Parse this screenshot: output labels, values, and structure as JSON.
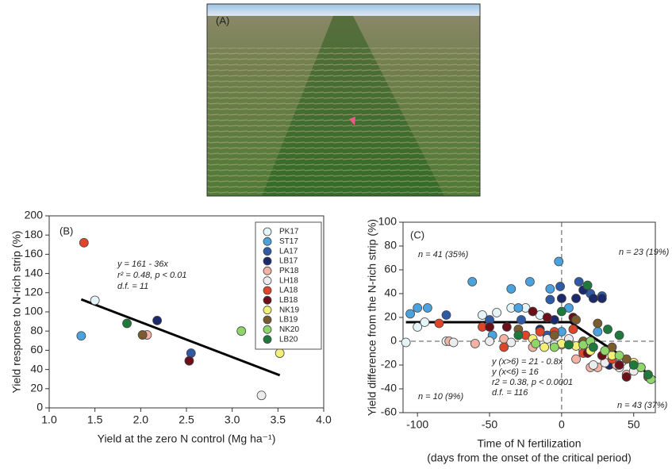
{
  "photo": {
    "label": "(A)"
  },
  "chart_data": [
    {
      "type": "scatter",
      "panel": "(B)",
      "x_label": "Yield at the zero N control (Mg ha⁻¹)",
      "y_label": "Yield response to N-rich strip (%)",
      "annotations": [
        "y = 161 - 36x",
        "r² = 0.48, p < 0.01",
        "d.f. = 11"
      ],
      "xlim": [
        1.0,
        4.0
      ],
      "xticks": [
        {
          "value": 1.0,
          "label": "1.0"
        },
        {
          "value": 1.5,
          "label": "1.5"
        },
        {
          "value": 2.0,
          "label": "2.0"
        },
        {
          "value": 2.5,
          "label": "2.5"
        },
        {
          "value": 3.0,
          "label": "3.0"
        },
        {
          "value": 3.5,
          "label": "3.5"
        },
        {
          "value": 4.0,
          "label": "4.0"
        }
      ],
      "ylim": [
        0,
        200
      ],
      "yticks": [
        0,
        20,
        40,
        60,
        80,
        100,
        120,
        140,
        160,
        180,
        200
      ],
      "legend": "top-right",
      "series": [
        {
          "name": "PK17",
          "color": "#e4f4f8",
          "x": [
            1.5
          ],
          "values": [
            112
          ]
        },
        {
          "name": "ST17",
          "color": "#4aa3df",
          "x": [
            1.35
          ],
          "values": [
            75
          ]
        },
        {
          "name": "LA17",
          "color": "#2f5ba6",
          "x": [
            2.55
          ],
          "values": [
            57
          ]
        },
        {
          "name": "LB17",
          "color": "#1b2a6b",
          "x": [
            2.18
          ],
          "values": [
            91
          ]
        },
        {
          "name": "PK18",
          "color": "#f2b2a4",
          "x": [
            2.07
          ],
          "values": [
            76
          ]
        },
        {
          "name": "LH18",
          "color": "#ececec",
          "x": [
            3.32
          ],
          "values": [
            13
          ]
        },
        {
          "name": "LA18",
          "color": "#e0452a",
          "x": [
            1.38
          ],
          "values": [
            172
          ]
        },
        {
          "name": "LB18",
          "color": "#6b0f1a",
          "x": [
            2.53
          ],
          "values": [
            49
          ]
        },
        {
          "name": "NK19",
          "color": "#f3f07a",
          "x": [
            3.52
          ],
          "values": [
            57
          ]
        },
        {
          "name": "LB19",
          "color": "#7a5c2e",
          "x": [
            2.02
          ],
          "values": [
            76
          ]
        },
        {
          "name": "NK20",
          "color": "#8fd66a",
          "x": [
            3.1
          ],
          "values": [
            80
          ]
        },
        {
          "name": "LB20",
          "color": "#1e7a3c",
          "x": [
            1.85
          ],
          "values": [
            88
          ]
        }
      ],
      "fit": {
        "x": [
          1.35,
          3.52
        ],
        "values": [
          113,
          34
        ]
      }
    },
    {
      "type": "scatter",
      "panel": "(C)",
      "x_label": [
        "Time of N fertilization",
        "(days from the onset of the critical period)"
      ],
      "y_label": "Yield difference from the N-rich strip (%)",
      "annotations": [
        "n = 41 (35%)",
        "n = 23 (19%)",
        "n = 10 (9%)",
        "n = 43 (37%)",
        "y (x>6) = 21 - 0.8x",
        "y (x<6) = 16",
        "r2 = 0.38, p < 0.0001",
        "d.f. = 116"
      ],
      "xlim": [
        -110,
        65
      ],
      "xticks": [
        -100,
        -50,
        0,
        50
      ],
      "ylim": [
        -60,
        100
      ],
      "yticks": [
        -60,
        -40,
        -20,
        0,
        20,
        40,
        60,
        80,
        100
      ],
      "reference_lines": {
        "x": 0,
        "y": 0
      },
      "series": [
        {
          "color": "#e4f4f8",
          "x": [
            -108,
            -100,
            -95,
            -80,
            -55,
            -45,
            -35,
            -25,
            -15,
            -5,
            40,
            55
          ],
          "values": [
            -1,
            12,
            16,
            0,
            22,
            24,
            28,
            28,
            22,
            -3,
            -22,
            -22
          ]
        },
        {
          "color": "#4aa3df",
          "x": [
            -105,
            -100,
            -93,
            -62,
            -48,
            -35,
            -30,
            -22,
            -8,
            -2,
            0,
            5,
            25
          ],
          "values": [
            23,
            28,
            28,
            50,
            5,
            44,
            28,
            50,
            44,
            67,
            8,
            28,
            8
          ]
        },
        {
          "color": "#2f5ba6",
          "x": [
            -80,
            -50,
            -28,
            -10,
            -1,
            -8,
            12,
            20,
            28
          ],
          "values": [
            22,
            18,
            18,
            5,
            46,
            35,
            50,
            40,
            38
          ]
        },
        {
          "color": "#1b2a6b",
          "x": [
            -15,
            -5,
            0,
            10,
            15,
            22,
            28,
            33
          ],
          "values": [
            10,
            18,
            36,
            36,
            43,
            36,
            36,
            -20
          ]
        },
        {
          "color": "#f2b2a4",
          "x": [
            -78,
            -60,
            -40,
            -20,
            0,
            10,
            20,
            25,
            38,
            45
          ],
          "values": [
            0,
            -2,
            2,
            -5,
            -3,
            -15,
            -22,
            -22,
            -20,
            -28
          ]
        },
        {
          "color": "#ececec",
          "x": [
            -75,
            -50,
            -35,
            -10,
            5,
            15,
            22,
            30,
            42,
            50
          ],
          "values": [
            -1,
            0,
            -1,
            2,
            2,
            -8,
            -20,
            -18,
            -17,
            -25
          ]
        },
        {
          "color": "#e0452a",
          "x": [
            -85,
            -55,
            -40,
            -25,
            -15,
            -5,
            8,
            15,
            35
          ],
          "values": [
            15,
            12,
            -5,
            5,
            8,
            8,
            10,
            -10,
            -15
          ]
        },
        {
          "color": "#6b0f1a",
          "x": [
            -50,
            -38,
            -20,
            -10,
            8,
            18,
            28,
            40,
            45
          ],
          "values": [
            12,
            12,
            25,
            20,
            20,
            -10,
            -12,
            -20,
            -30
          ]
        },
        {
          "color": "#f3f07a",
          "x": [
            -20,
            -12,
            0,
            10,
            20,
            35,
            50
          ],
          "values": [
            2,
            -5,
            -2,
            -4,
            -8,
            -12,
            -18
          ]
        },
        {
          "color": "#7a5c2e",
          "x": [
            -30,
            -5,
            10,
            15,
            25,
            35,
            45,
            60
          ],
          "values": [
            10,
            5,
            18,
            0,
            15,
            -5,
            -15,
            -30
          ]
        },
        {
          "color": "#8fd66a",
          "x": [
            -18,
            -5,
            15,
            20,
            30,
            40,
            55,
            62
          ],
          "values": [
            -2,
            -5,
            -3,
            0,
            -8,
            -12,
            -22,
            -32
          ]
        },
        {
          "color": "#1e7a3c",
          "x": [
            -30,
            0,
            5,
            18,
            22,
            32,
            40,
            50,
            60
          ],
          "values": [
            5,
            25,
            -3,
            47,
            -5,
            10,
            5,
            -20,
            -28
          ]
        }
      ],
      "fit": {
        "x": [
          -108,
          6,
          65
        ],
        "values": [
          16,
          16,
          -31
        ]
      }
    }
  ]
}
